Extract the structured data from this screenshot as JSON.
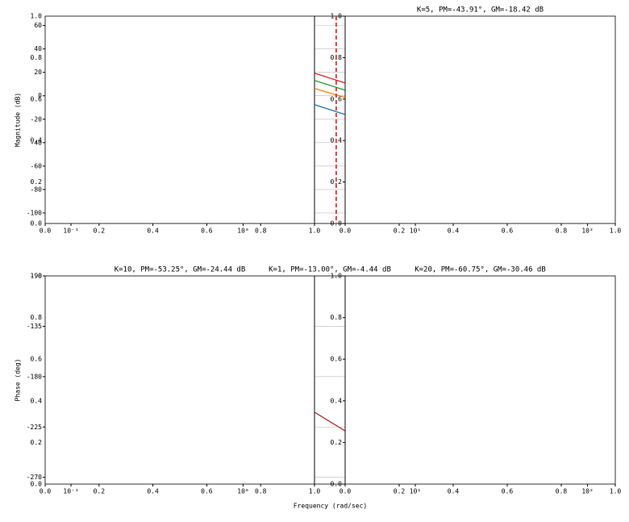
{
  "chart_data": [
    {
      "type": "line",
      "titles": [
        "K=5, PM=-43.91°, GM=-18.42 dB"
      ],
      "ylabel": "Magnitude (dB)",
      "xscale": "log",
      "xlim": [
        0.0708,
        145
      ],
      "xticks": [
        {
          "value": 0.1,
          "label": "10⁻¹"
        },
        {
          "value": 1,
          "label": "10⁰"
        },
        {
          "value": 10,
          "label": "10¹"
        },
        {
          "value": 100,
          "label": "10²"
        }
      ],
      "ylim": [
        -109,
        68
      ],
      "yticks": [
        60,
        40,
        20,
        0,
        -20,
        -40,
        -60,
        -80,
        -100
      ],
      "overlay_ticks": [
        {
          "value": 0,
          "label": "0.0"
        },
        {
          "value": 0.2,
          "label": "0.2"
        },
        {
          "value": 0.4,
          "label": "0.4"
        },
        {
          "value": 0.6,
          "label": "0.6"
        },
        {
          "value": 0.8,
          "label": "0.8"
        },
        {
          "value": 1,
          "label": "1.0"
        }
      ],
      "vline": {
        "x": 3.47,
        "color": "#e31a1c"
      },
      "series": [
        {
          "color": "#d62728",
          "x": [
            2.6,
            3.9
          ],
          "values": [
            19.3,
            11.0
          ]
        },
        {
          "color": "#2ca02c",
          "x": [
            2.6,
            3.9
          ],
          "values": [
            13.1,
            4.8
          ]
        },
        {
          "color": "#ff7f0e",
          "x": [
            2.6,
            3.9
          ],
          "values": [
            6.2,
            -1.4
          ]
        },
        {
          "color": "#1f77b4",
          "x": [
            2.6,
            3.9
          ],
          "values": [
            -7.6,
            -15.9
          ]
        }
      ]
    },
    {
      "type": "line",
      "titles": [
        "K=10, PM=-53.25°, GM=-24.44 dB",
        "K=1, PM=-13.00°, GM=-4.44 dB",
        "K=20, PM=-60.75°, GM=-30.46 dB"
      ],
      "ylabel": "Phase (deg)",
      "xlabel": "Frequency (rad/sec)",
      "xscale": "log",
      "xlim": [
        0.0708,
        145
      ],
      "xticks": [
        {
          "value": 0.1,
          "label": "10⁻¹"
        },
        {
          "value": 1,
          "label": "10⁰"
        },
        {
          "value": 10,
          "label": "10¹"
        },
        {
          "value": 100,
          "label": "10²"
        }
      ],
      "ylim": [
        -276,
        -90
      ],
      "yticks": [
        -90,
        -135,
        -180,
        -225,
        -270
      ],
      "overlay_ticks": [
        {
          "value": 0,
          "label": "0.0"
        },
        {
          "value": 0.2,
          "label": "0.2"
        },
        {
          "value": 0.4,
          "label": "0.4"
        },
        {
          "value": 0.6,
          "label": "0.6"
        },
        {
          "value": 0.8,
          "label": "0.8"
        },
        {
          "value": 1,
          "label": "1.0"
        }
      ],
      "series": [
        {
          "color": "#b0302a",
          "x": [
            2.6,
            3.9
          ],
          "values": [
            -211.8,
            -228.4
          ]
        }
      ]
    }
  ]
}
